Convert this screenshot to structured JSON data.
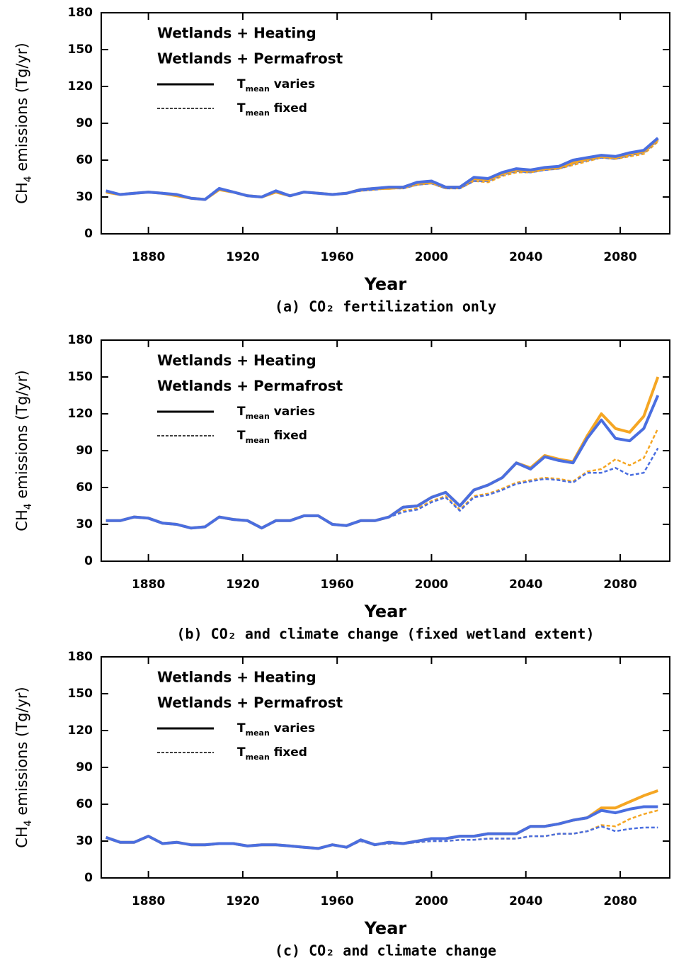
{
  "chart_data": [
    {
      "type": "line",
      "caption": "(a) CO₂ fertilization only",
      "xlabel": "Year",
      "ylabel": {
        "text": "CH",
        "subscript": "4",
        "suffix": " emissions (Tg/yr)"
      },
      "x": [
        1862,
        1868,
        1874,
        1880,
        1886,
        1892,
        1898,
        1904,
        1910,
        1916,
        1922,
        1928,
        1934,
        1940,
        1946,
        1952,
        1958,
        1964,
        1970,
        1976,
        1982,
        1988,
        1994,
        2000,
        2006,
        2012,
        2018,
        2024,
        2030,
        2036,
        2042,
        2048,
        2054,
        2060,
        2066,
        2072,
        2078,
        2084,
        2090,
        2096
      ],
      "xlim": [
        1860,
        2101
      ],
      "xticks": [
        1880,
        1920,
        1960,
        2000,
        2040,
        2080
      ],
      "ylim": [
        0,
        180
      ],
      "yticks": [
        0,
        30,
        60,
        90,
        120,
        150,
        180
      ],
      "legend": {
        "colors": [
          {
            "label": "Wetlands + Heating",
            "color": "#f5a623"
          },
          {
            "label": "Wetlands + Permafrost",
            "color": "#4a6ee0"
          }
        ],
        "styles": [
          {
            "label": "T",
            "subscript": "mean",
            "suffix": " varies",
            "dashed": false
          },
          {
            "label": "T",
            "subscript": "mean",
            "suffix": " fixed",
            "dashed": true
          }
        ]
      },
      "series": [
        {
          "color": "#f5a623",
          "dashed": true,
          "values": [
            34,
            32,
            33,
            34,
            33,
            31,
            29,
            28,
            36,
            34,
            31,
            30,
            34,
            31,
            34,
            33,
            32,
            33,
            35,
            36,
            37,
            37,
            40,
            41,
            37,
            37,
            43,
            42,
            47,
            50,
            50,
            52,
            53,
            56,
            59,
            62,
            61,
            63,
            65,
            75
          ]
        },
        {
          "color": "#4a6ee0",
          "dashed": true,
          "values": [
            35,
            32,
            33,
            34,
            33,
            32,
            29,
            28,
            37,
            34,
            31,
            30,
            35,
            31,
            34,
            33,
            32,
            33,
            35,
            36,
            37,
            37,
            40,
            41,
            37,
            37,
            43,
            43,
            48,
            51,
            50,
            52,
            53,
            57,
            60,
            62,
            61,
            64,
            66,
            76
          ]
        },
        {
          "color": "#f5a623",
          "dashed": false,
          "values": [
            34,
            32,
            33,
            34,
            33,
            31,
            29,
            28,
            36,
            34,
            31,
            30,
            34,
            31,
            34,
            33,
            32,
            33,
            36,
            37,
            37,
            38,
            41,
            42,
            38,
            38,
            45,
            44,
            49,
            52,
            51,
            53,
            54,
            58,
            61,
            63,
            62,
            65,
            67,
            77
          ]
        },
        {
          "color": "#4a6ee0",
          "dashed": false,
          "values": [
            35,
            32,
            33,
            34,
            33,
            32,
            29,
            28,
            37,
            34,
            31,
            30,
            35,
            31,
            34,
            33,
            32,
            33,
            36,
            37,
            38,
            38,
            42,
            43,
            38,
            38,
            46,
            45,
            50,
            53,
            52,
            54,
            55,
            60,
            62,
            64,
            63,
            66,
            68,
            78
          ]
        }
      ]
    },
    {
      "type": "line",
      "caption": "(b) CO₂ and climate change (fixed wetland extent)",
      "xlabel": "Year",
      "ylabel": {
        "text": "CH",
        "subscript": "4",
        "suffix": " emissions (Tg/yr)"
      },
      "x": [
        1862,
        1868,
        1874,
        1880,
        1886,
        1892,
        1898,
        1904,
        1910,
        1916,
        1922,
        1928,
        1934,
        1940,
        1946,
        1952,
        1958,
        1964,
        1970,
        1976,
        1982,
        1988,
        1994,
        2000,
        2006,
        2012,
        2018,
        2024,
        2030,
        2036,
        2042,
        2048,
        2054,
        2060,
        2066,
        2072,
        2078,
        2084,
        2090,
        2096
      ],
      "xlim": [
        1860,
        2101
      ],
      "xticks": [
        1880,
        1920,
        1960,
        2000,
        2040,
        2080
      ],
      "ylim": [
        0,
        180
      ],
      "yticks": [
        0,
        30,
        60,
        90,
        120,
        150,
        180
      ],
      "legend": {
        "colors": [
          {
            "label": "Wetlands + Heating",
            "color": "#f5a623"
          },
          {
            "label": "Wetlands + Permafrost",
            "color": "#4a6ee0"
          }
        ],
        "styles": [
          {
            "label": "T",
            "subscript": "mean",
            "suffix": " varies",
            "dashed": false
          },
          {
            "label": "T",
            "subscript": "mean",
            "suffix": " fixed",
            "dashed": true
          }
        ]
      },
      "series": [
        {
          "color": "#f5a623",
          "dashed": true,
          "values": [
            33,
            33,
            36,
            35,
            31,
            30,
            27,
            28,
            36,
            34,
            33,
            27,
            33,
            33,
            37,
            37,
            30,
            29,
            33,
            33,
            36,
            41,
            43,
            49,
            53,
            42,
            53,
            55,
            59,
            64,
            66,
            68,
            67,
            65,
            73,
            75,
            83,
            78,
            84,
            108
          ]
        },
        {
          "color": "#4a6ee0",
          "dashed": true,
          "values": [
            33,
            33,
            36,
            35,
            31,
            30,
            27,
            28,
            36,
            34,
            33,
            27,
            33,
            33,
            37,
            37,
            30,
            29,
            33,
            33,
            36,
            40,
            42,
            48,
            52,
            41,
            52,
            54,
            58,
            63,
            65,
            67,
            66,
            64,
            72,
            72,
            76,
            70,
            72,
            92
          ]
        },
        {
          "color": "#f5a623",
          "dashed": false,
          "values": [
            33,
            33,
            36,
            35,
            31,
            30,
            27,
            28,
            36,
            34,
            33,
            27,
            33,
            33,
            37,
            37,
            30,
            29,
            33,
            33,
            36,
            44,
            45,
            52,
            56,
            45,
            58,
            62,
            68,
            80,
            76,
            86,
            83,
            81,
            102,
            120,
            108,
            105,
            118,
            150
          ]
        },
        {
          "color": "#4a6ee0",
          "dashed": false,
          "values": [
            33,
            33,
            36,
            35,
            31,
            30,
            27,
            28,
            36,
            34,
            33,
            27,
            33,
            33,
            37,
            37,
            30,
            29,
            33,
            33,
            36,
            44,
            45,
            52,
            56,
            45,
            58,
            62,
            68,
            80,
            75,
            85,
            82,
            80,
            100,
            115,
            100,
            98,
            108,
            135
          ]
        }
      ]
    },
    {
      "type": "line",
      "caption": "(c) CO₂ and climate change",
      "xlabel": "Year",
      "ylabel": {
        "text": "CH",
        "subscript": "4",
        "suffix": " emissions (Tg/yr)"
      },
      "x": [
        1862,
        1868,
        1874,
        1880,
        1886,
        1892,
        1898,
        1904,
        1910,
        1916,
        1922,
        1928,
        1934,
        1940,
        1946,
        1952,
        1958,
        1964,
        1970,
        1976,
        1982,
        1988,
        1994,
        2000,
        2006,
        2012,
        2018,
        2024,
        2030,
        2036,
        2042,
        2048,
        2054,
        2060,
        2066,
        2072,
        2078,
        2084,
        2090,
        2096
      ],
      "xlim": [
        1860,
        2101
      ],
      "xticks": [
        1880,
        1920,
        1960,
        2000,
        2040,
        2080
      ],
      "ylim": [
        0,
        180
      ],
      "yticks": [
        0,
        30,
        60,
        90,
        120,
        150,
        180
      ],
      "legend": {
        "colors": [
          {
            "label": "Wetlands + Heating",
            "color": "#f5a623"
          },
          {
            "label": "Wetlands + Permafrost",
            "color": "#4a6ee0"
          }
        ],
        "styles": [
          {
            "label": "T",
            "subscript": "mean",
            "suffix": " varies",
            "dashed": false
          },
          {
            "label": "T",
            "subscript": "mean",
            "suffix": " fixed",
            "dashed": true
          }
        ]
      },
      "series": [
        {
          "color": "#f5a623",
          "dashed": true,
          "values": [
            33,
            29,
            29,
            34,
            28,
            29,
            27,
            27,
            28,
            28,
            26,
            27,
            27,
            26,
            25,
            24,
            27,
            25,
            30,
            27,
            28,
            28,
            29,
            30,
            30,
            31,
            31,
            32,
            32,
            32,
            34,
            34,
            36,
            36,
            38,
            43,
            42,
            48,
            52,
            55
          ]
        },
        {
          "color": "#4a6ee0",
          "dashed": true,
          "values": [
            33,
            29,
            29,
            34,
            28,
            29,
            27,
            27,
            28,
            28,
            26,
            27,
            27,
            26,
            25,
            24,
            27,
            25,
            30,
            27,
            28,
            28,
            29,
            30,
            30,
            31,
            31,
            32,
            32,
            32,
            34,
            34,
            36,
            36,
            38,
            42,
            38,
            40,
            41,
            41
          ]
        },
        {
          "color": "#f5a623",
          "dashed": false,
          "values": [
            33,
            29,
            29,
            34,
            28,
            29,
            27,
            27,
            28,
            28,
            26,
            27,
            27,
            26,
            25,
            24,
            27,
            25,
            31,
            27,
            29,
            28,
            30,
            32,
            32,
            34,
            34,
            36,
            36,
            36,
            42,
            42,
            44,
            47,
            49,
            57,
            57,
            62,
            67,
            71
          ]
        },
        {
          "color": "#4a6ee0",
          "dashed": false,
          "values": [
            33,
            29,
            29,
            34,
            28,
            29,
            27,
            27,
            28,
            28,
            26,
            27,
            27,
            26,
            25,
            24,
            27,
            25,
            31,
            27,
            29,
            28,
            30,
            32,
            32,
            34,
            34,
            36,
            36,
            36,
            42,
            42,
            44,
            47,
            49,
            55,
            53,
            56,
            58,
            58
          ]
        }
      ]
    }
  ]
}
